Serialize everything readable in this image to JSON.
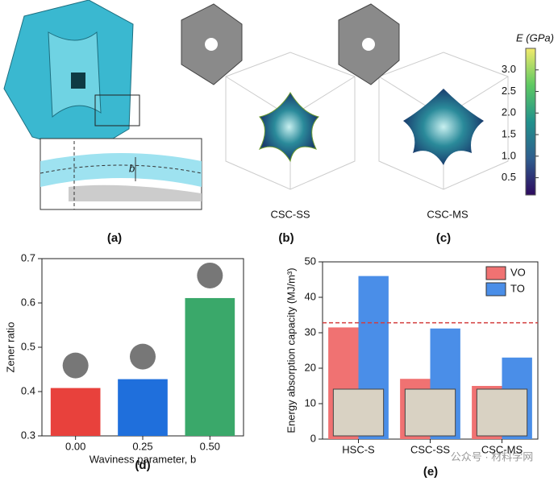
{
  "panels": {
    "a": "(a)",
    "b": "(b)",
    "c": "(c)",
    "d": "(d)",
    "e": "(e)"
  },
  "inset_label": "b",
  "render_labels": [
    "CSC-SS",
    "CSC-MS"
  ],
  "colorbar": {
    "label": "E (GPa)",
    "lim": [
      0.1,
      3.5
    ],
    "ticks": [
      0.5,
      {
        "value": 1,
        "label": "1.0"
      },
      1.5,
      {
        "value": 2,
        "label": "2.0"
      },
      2.5,
      {
        "value": 3,
        "label": "3.0"
      }
    ]
  },
  "watermark": "公众号 · 材料学网",
  "chart_data": [
    {
      "type": "bar",
      "ylabel": "Zener ratio",
      "xlabel": "Waviness parameter, b",
      "categories": [
        "0.00",
        "0.25",
        "0.50"
      ],
      "values": [
        0.408,
        0.428,
        0.611
      ],
      "colors": [
        "#e8413c",
        "#1f6fdc",
        "#3aa86a"
      ],
      "ylim": [
        0.3,
        0.7
      ],
      "yticks": [
        0.3,
        0.4,
        0.5,
        0.6,
        0.7
      ]
    },
    {
      "type": "grouped-bar",
      "ylabel": "Energy absorption capacity (MJ/m³)",
      "categories": [
        "HSC-S",
        "CSC-SS",
        "CSC-MS"
      ],
      "series": [
        {
          "name": "VO",
          "color": "#f07272",
          "values": [
            31.5,
            17,
            15
          ]
        },
        {
          "name": "TO",
          "color": "#4a8ee8",
          "values": [
            46,
            31.2,
            23
          ]
        }
      ],
      "reference_line": 32.8,
      "reference_color": "#d23c3c",
      "ylim": [
        0,
        50
      ],
      "yticks": [
        0,
        10,
        20,
        30,
        40,
        50
      ],
      "legend": "top-right"
    }
  ]
}
